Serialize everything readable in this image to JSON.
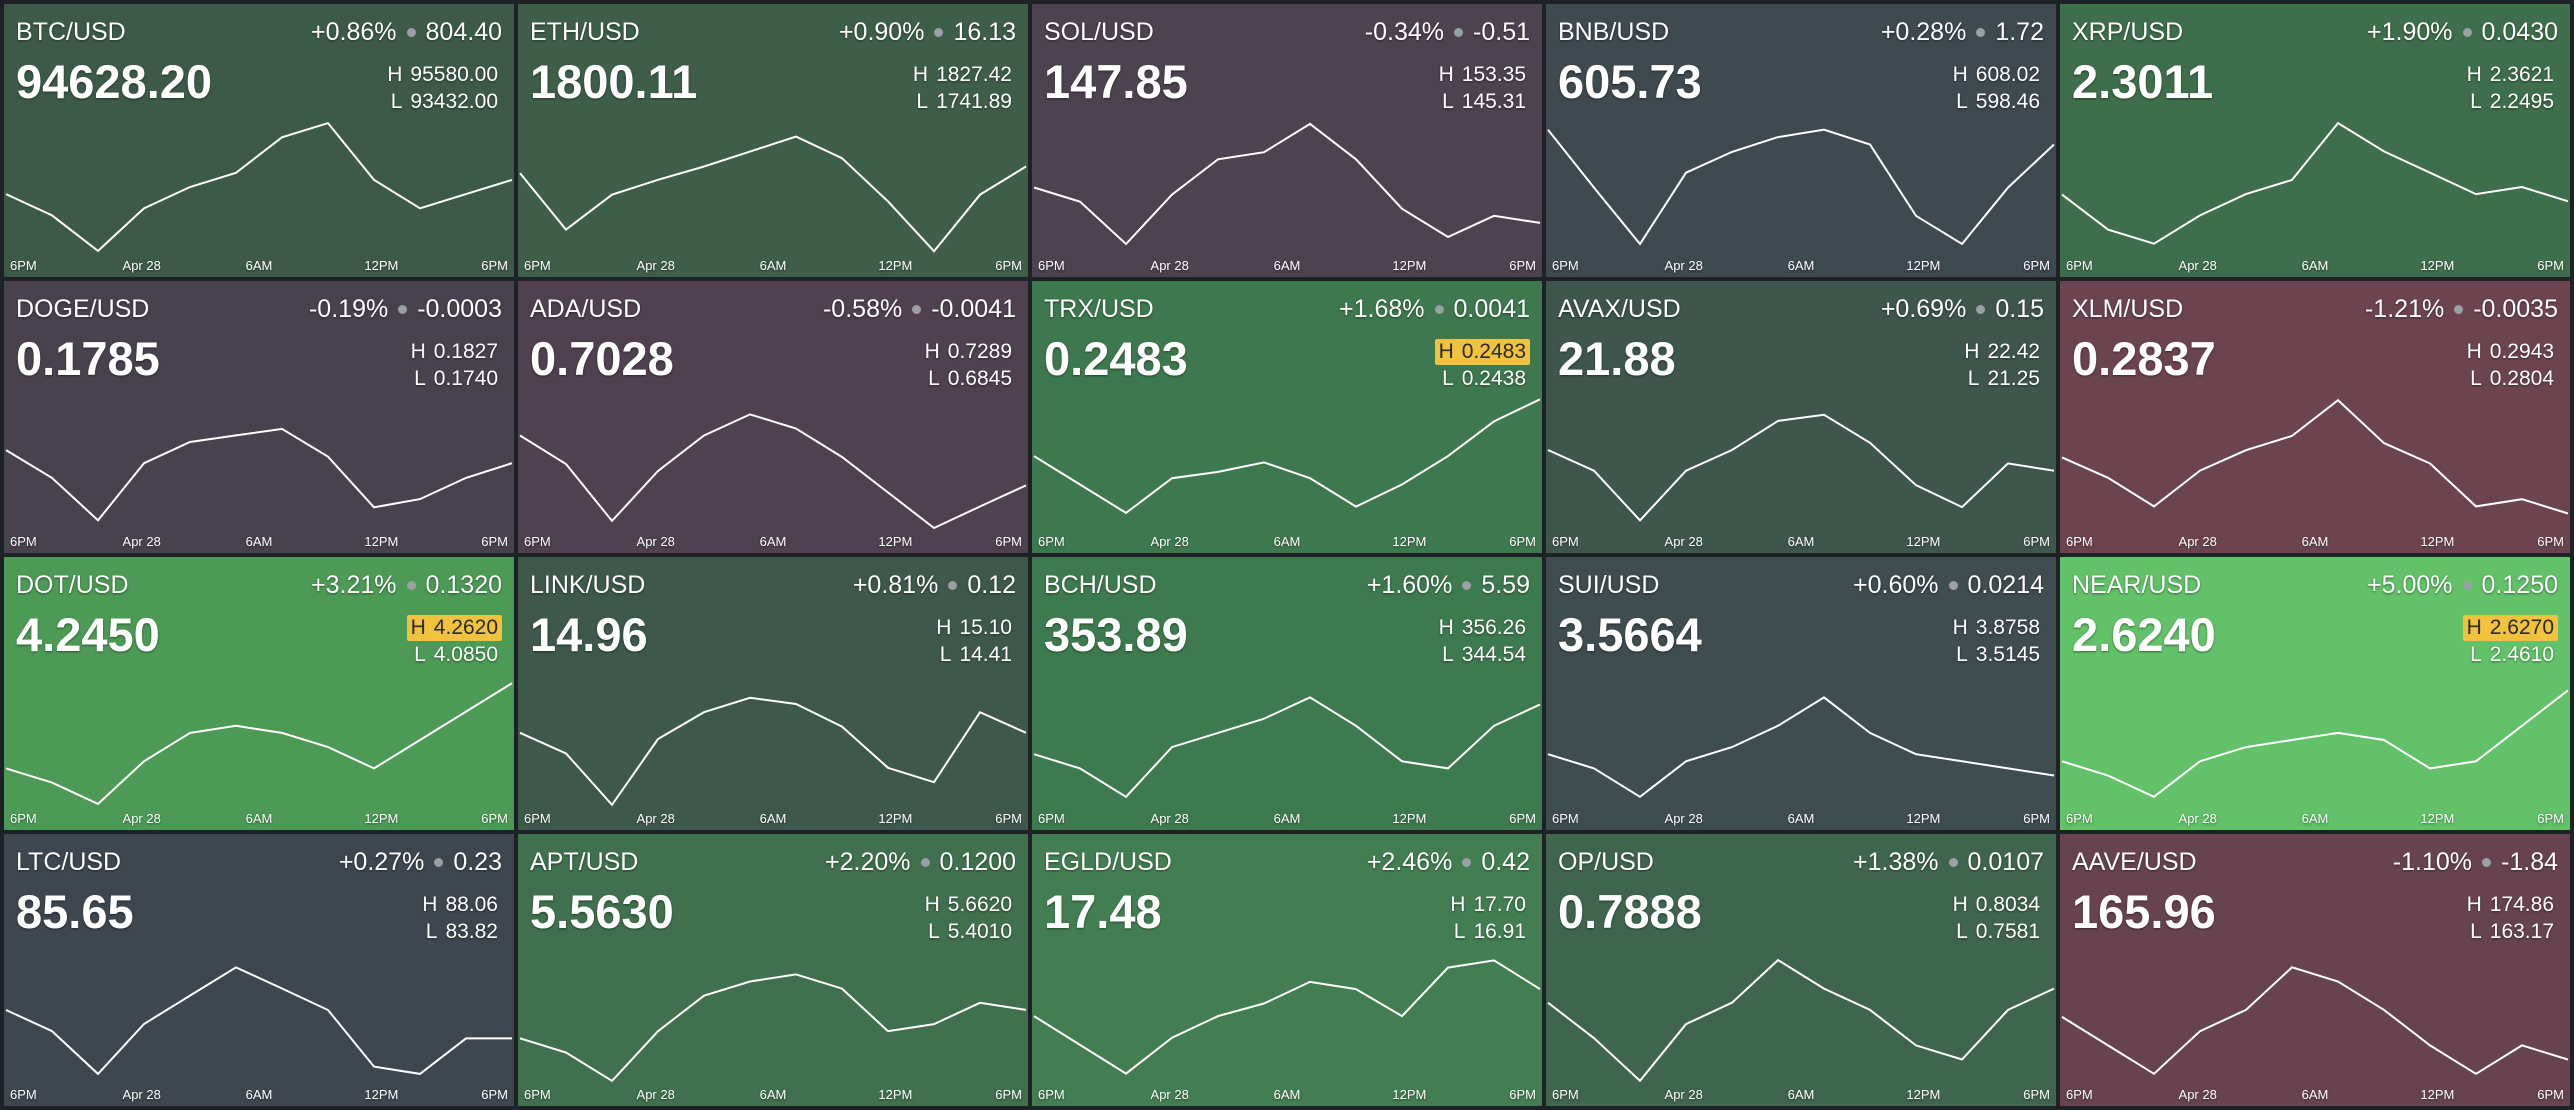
{
  "time_labels": [
    "6PM",
    "Apr 28",
    "6AM",
    "12PM",
    "6PM"
  ],
  "tiles": [
    {
      "pair": "BTC/USD",
      "change_pct": "+0.86%",
      "change": "804.40",
      "price": "94628.20",
      "high": "95580.00",
      "low": "93432.00",
      "color": "#3d5a48",
      "spark": [
        94399,
        94076,
        93539,
        94184,
        94506,
        94721,
        95258,
        95473,
        94613,
        94184,
        94399,
        94613
      ]
    },
    {
      "pair": "ETH/USD",
      "change_pct": "+0.90%",
      "change": "16.13",
      "price": "1800.11",
      "high": "1827.42",
      "low": "1741.89",
      "color": "#3e5e4a",
      "spark": [
        1793,
        1759,
        1780,
        1789,
        1797,
        1806,
        1815,
        1802,
        1776,
        1746,
        1780,
        1797
      ]
    },
    {
      "pair": "SOL/USD",
      "change_pct": "-0.34%",
      "change": "-0.51",
      "price": "147.85",
      "high": "153.35",
      "low": "145.31",
      "color": "#4c4250",
      "spark": [
        149.3,
        148.5,
        146.1,
        148.9,
        150.9,
        151.3,
        152.9,
        150.9,
        148.1,
        146.5,
        147.7,
        147.3
      ]
    },
    {
      "pair": "BNB/USD",
      "change_pct": "+0.28%",
      "change": "1.72",
      "price": "605.73",
      "high": "608.02",
      "low": "598.46",
      "color": "#3f4950",
      "spark": [
        607.1,
        603.2,
        599.4,
        604.2,
        605.6,
        606.6,
        607.1,
        606.1,
        601.3,
        599.4,
        603.2,
        606.1
      ]
    },
    {
      "pair": "XRP/USD",
      "change_pct": "+1.90%",
      "change": "0.0430",
      "price": "2.3011",
      "high": "2.3621",
      "low": "2.2495",
      "color": "#3e6e4b",
      "spark": [
        2.2998,
        2.272,
        2.2608,
        2.2833,
        2.3002,
        2.3114,
        2.3565,
        2.334,
        2.3171,
        2.3002,
        2.3058,
        2.2945
      ]
    },
    {
      "pair": "DOGE/USD",
      "change_pct": "-0.19%",
      "change": "-0.0003",
      "price": "0.1785",
      "high": "0.1827",
      "low": "0.1740",
      "color": "#48424e",
      "spark": [
        0.1792,
        0.1775,
        0.1749,
        0.1784,
        0.1797,
        0.1801,
        0.1805,
        0.1788,
        0.1757,
        0.1762,
        0.1775,
        0.1784
      ]
    },
    {
      "pair": "ADA/USD",
      "change_pct": "-0.58%",
      "change": "-0.0041",
      "price": "0.7028",
      "high": "0.7289",
      "low": "0.6845",
      "color": "#4f4150",
      "spark": [
        0.7156,
        0.7067,
        0.6889,
        0.7045,
        0.7156,
        0.7222,
        0.7178,
        0.7089,
        0.6978,
        0.6867,
        0.6934,
        0.7
      ]
    },
    {
      "pair": "TRX/USD",
      "change_pct": "+1.68%",
      "change": "0.0041",
      "price": "0.2483",
      "high": "0.2483",
      "low": "0.2438",
      "high_highlight": true,
      "color": "#3e784e",
      "spark": [
        0.2463,
        0.2454,
        0.2445,
        0.2456,
        0.2458,
        0.2461,
        0.2456,
        0.2447,
        0.2454,
        0.2463,
        0.2474,
        0.2481
      ]
    },
    {
      "pair": "AVAX/USD",
      "change_pct": "+0.69%",
      "change": "0.15",
      "price": "21.88",
      "high": "22.42",
      "low": "21.25",
      "color": "#3e564c",
      "spark": [
        21.95,
        21.78,
        21.37,
        21.78,
        21.95,
        22.19,
        22.24,
        22.01,
        21.66,
        21.48,
        21.84,
        21.78
      ]
    },
    {
      "pair": "XLM/USD",
      "change_pct": "-1.21%",
      "change": "-0.0035",
      "price": "0.2837",
      "high": "0.2943",
      "low": "0.2804",
      "color": "#6c444f",
      "spark": [
        0.288,
        0.286,
        0.2832,
        0.2867,
        0.2887,
        0.2901,
        0.2936,
        0.2894,
        0.2874,
        0.2832,
        0.2839,
        0.2825
      ]
    },
    {
      "pair": "DOT/USD",
      "change_pct": "+3.21%",
      "change": "0.1320",
      "price": "4.2450",
      "high": "4.2620",
      "low": "4.0850",
      "high_highlight": true,
      "color": "#4c9a55",
      "spark": [
        4.1381,
        4.1204,
        4.0939,
        4.147,
        4.1824,
        4.1912,
        4.1824,
        4.1647,
        4.1381,
        4.1735,
        4.2089,
        4.2443
      ]
    },
    {
      "pair": "LINK/USD",
      "change_pct": "+0.81%",
      "change": "0.12",
      "price": "14.96",
      "high": "15.10",
      "low": "14.41",
      "color": "#3e584c",
      "spark": [
        14.79,
        14.69,
        14.44,
        14.76,
        14.89,
        14.96,
        14.93,
        14.82,
        14.62,
        14.55,
        14.89,
        14.79
      ]
    },
    {
      "pair": "BCH/USD",
      "change_pct": "+1.60%",
      "change": "5.59",
      "price": "353.89",
      "high": "356.26",
      "low": "344.54",
      "color": "#3e7a4f",
      "spark": [
        349.23,
        348.06,
        345.71,
        349.81,
        350.99,
        352.16,
        353.92,
        351.57,
        348.64,
        348.06,
        351.57,
        353.33
      ]
    },
    {
      "pair": "SUI/USD",
      "change_pct": "+0.60%",
      "change": "0.0214",
      "price": "3.5664",
      "high": "3.8758",
      "low": "3.5145",
      "color": "#3f4c50",
      "spark": [
        3.659,
        3.6229,
        3.5506,
        3.641,
        3.6771,
        3.7313,
        3.8035,
        3.7132,
        3.659,
        3.641,
        3.6229,
        3.6048
      ]
    },
    {
      "pair": "NEAR/USD",
      "change_pct": "+5.00%",
      "change": "0.1250",
      "price": "2.6240",
      "high": "2.6270",
      "low": "2.4610",
      "high_highlight": true,
      "color": "#62c169",
      "spark": [
        2.5191,
        2.5025,
        2.4776,
        2.5191,
        2.5357,
        2.544,
        2.5523,
        2.544,
        2.5108,
        2.5191,
        2.5606,
        2.6021
      ]
    },
    {
      "pair": "LTC/USD",
      "change_pct": "+0.27%",
      "change": "0.23",
      "price": "85.65",
      "high": "88.06",
      "low": "83.82",
      "color": "#3e464f",
      "spark": [
        86.15,
        85.52,
        84.24,
        85.73,
        86.58,
        87.42,
        86.79,
        86.15,
        84.46,
        84.24,
        85.3,
        85.3
      ]
    },
    {
      "pair": "APT/USD",
      "change_pct": "+2.20%",
      "change": "0.1200",
      "price": "5.5630",
      "high": "5.6620",
      "low": "5.4010",
      "color": "#40704d",
      "spark": [
        5.4924,
        5.4663,
        5.4141,
        5.5054,
        5.5707,
        5.5968,
        5.6098,
        5.5837,
        5.5054,
        5.5185,
        5.5576,
        5.5446
      ]
    },
    {
      "pair": "EGLD/USD",
      "change_pct": "+2.46%",
      "change": "0.42",
      "price": "17.48",
      "high": "17.70",
      "low": "16.91",
      "color": "#437e52",
      "spark": [
        17.31,
        17.15,
        16.99,
        17.19,
        17.31,
        17.38,
        17.5,
        17.46,
        17.31,
        17.58,
        17.62,
        17.46
      ]
    },
    {
      "pair": "OP/USD",
      "change_pct": "+1.38%",
      "change": "0.0107",
      "price": "0.7888",
      "high": "0.8034",
      "low": "0.7581",
      "color": "#40654f",
      "spark": [
        0.7853,
        0.774,
        0.7604,
        0.7785,
        0.7853,
        0.7989,
        0.7898,
        0.783,
        0.7717,
        0.7672,
        0.783,
        0.7898
      ]
    },
    {
      "pair": "AAVE/USD",
      "change_pct": "-1.10%",
      "change": "-1.84",
      "price": "165.96",
      "high": "174.86",
      "low": "163.17",
      "color": "#67434f",
      "spark": [
        169.02,
        166.68,
        164.34,
        167.85,
        169.6,
        173.11,
        171.94,
        169.6,
        166.68,
        164.34,
        166.68,
        165.51
      ]
    }
  ]
}
